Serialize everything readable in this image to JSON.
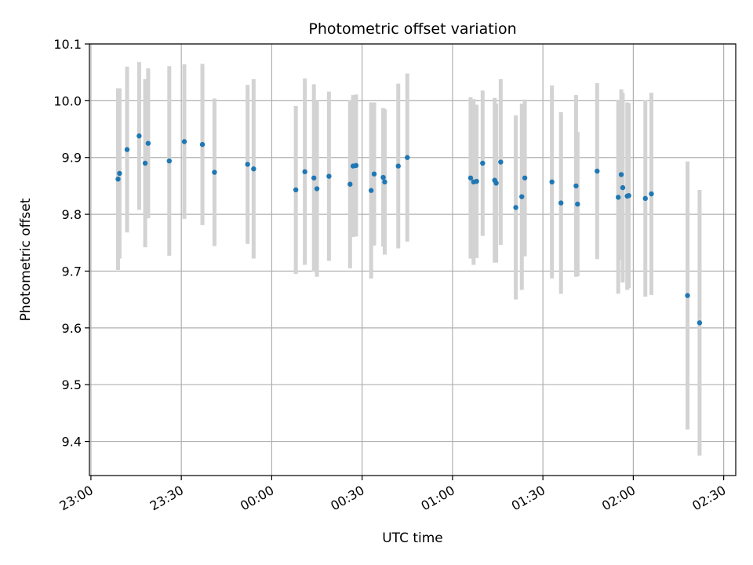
{
  "chart_data": {
    "type": "scatter",
    "title": "Photometric offset variation",
    "xlabel": "UTC time",
    "ylabel": "Photometric offset",
    "xlim": [
      "2000-01-01T22:59:30",
      "2000-01-02T02:34:00"
    ],
    "ylim": [
      9.34,
      10.1
    ],
    "x_ticks": [
      {
        "value": "2000-01-01T23:00",
        "label": "23:00"
      },
      {
        "value": "2000-01-01T23:30",
        "label": "23:30"
      },
      {
        "value": "2000-01-02T00:00",
        "label": "00:00"
      },
      {
        "value": "2000-01-02T00:30",
        "label": "00:30"
      },
      {
        "value": "2000-01-02T01:00",
        "label": "01:00"
      },
      {
        "value": "2000-01-02T01:30",
        "label": "01:30"
      },
      {
        "value": "2000-01-02T02:00",
        "label": "02:00"
      },
      {
        "value": "2000-01-02T02:30",
        "label": "02:30"
      }
    ],
    "y_ticks": [
      {
        "value": 9.4,
        "label": "9.4"
      },
      {
        "value": 9.5,
        "label": "9.5"
      },
      {
        "value": 9.6,
        "label": "9.6"
      },
      {
        "value": 9.7,
        "label": "9.7"
      },
      {
        "value": 9.8,
        "label": "9.8"
      },
      {
        "value": 9.9,
        "label": "9.9"
      },
      {
        "value": 10.0,
        "label": "10.0"
      },
      {
        "value": 10.1,
        "label": "10.1"
      }
    ],
    "grid": true,
    "colors": {
      "points": "#1f77b4",
      "errorbars": "#d3d3d3",
      "grid": "#b0b0b0"
    },
    "points": [
      {
        "t": "2000-01-01T23:09",
        "y": 9.862,
        "err": 0.16
      },
      {
        "t": "2000-01-01T23:09:30",
        "y": 9.872,
        "err": 0.15
      },
      {
        "t": "2000-01-01T23:12",
        "y": 9.914,
        "err": 0.146
      },
      {
        "t": "2000-01-01T23:16",
        "y": 9.938,
        "err": 0.13
      },
      {
        "t": "2000-01-01T23:18",
        "y": 9.89,
        "err": 0.148
      },
      {
        "t": "2000-01-01T23:19",
        "y": 9.925,
        "err": 0.132
      },
      {
        "t": "2000-01-01T23:26",
        "y": 9.894,
        "err": 0.167
      },
      {
        "t": "2000-01-01T23:31",
        "y": 9.928,
        "err": 0.136
      },
      {
        "t": "2000-01-01T23:37",
        "y": 9.923,
        "err": 0.142
      },
      {
        "t": "2000-01-01T23:41",
        "y": 9.874,
        "err": 0.13
      },
      {
        "t": "2000-01-01T23:52",
        "y": 9.888,
        "err": 0.14
      },
      {
        "t": "2000-01-01T23:54",
        "y": 9.88,
        "err": 0.158
      },
      {
        "t": "2000-01-02T00:08",
        "y": 9.843,
        "err": 0.148
      },
      {
        "t": "2000-01-02T00:11",
        "y": 9.875,
        "err": 0.164
      },
      {
        "t": "2000-01-02T00:14",
        "y": 9.864,
        "err": 0.165
      },
      {
        "t": "2000-01-02T00:15",
        "y": 9.845,
        "err": 0.155
      },
      {
        "t": "2000-01-02T00:19",
        "y": 9.867,
        "err": 0.149
      },
      {
        "t": "2000-01-02T00:26",
        "y": 9.853,
        "err": 0.148
      },
      {
        "t": "2000-01-02T00:27",
        "y": 9.885,
        "err": 0.125
      },
      {
        "t": "2000-01-02T00:28",
        "y": 9.886,
        "err": 0.125
      },
      {
        "t": "2000-01-02T00:33",
        "y": 9.842,
        "err": 0.155
      },
      {
        "t": "2000-01-02T00:34",
        "y": 9.871,
        "err": 0.126
      },
      {
        "t": "2000-01-02T00:37",
        "y": 9.865,
        "err": 0.122
      },
      {
        "t": "2000-01-02T00:37:30",
        "y": 9.857,
        "err": 0.128
      },
      {
        "t": "2000-01-02T00:42",
        "y": 9.885,
        "err": 0.145
      },
      {
        "t": "2000-01-02T00:45",
        "y": 9.9,
        "err": 0.148
      },
      {
        "t": "2000-01-02T01:06",
        "y": 9.864,
        "err": 0.142
      },
      {
        "t": "2000-01-02T01:07",
        "y": 9.857,
        "err": 0.146
      },
      {
        "t": "2000-01-02T01:08",
        "y": 9.858,
        "err": 0.135
      },
      {
        "t": "2000-01-02T01:10",
        "y": 9.89,
        "err": 0.128
      },
      {
        "t": "2000-01-02T01:14",
        "y": 9.86,
        "err": 0.145
      },
      {
        "t": "2000-01-02T01:14:30",
        "y": 9.855,
        "err": 0.14
      },
      {
        "t": "2000-01-02T01:16",
        "y": 9.892,
        "err": 0.146
      },
      {
        "t": "2000-01-02T01:21",
        "y": 9.812,
        "err": 0.162
      },
      {
        "t": "2000-01-02T01:23",
        "y": 9.831,
        "err": 0.164
      },
      {
        "t": "2000-01-02T01:24",
        "y": 9.864,
        "err": 0.138
      },
      {
        "t": "2000-01-02T01:33",
        "y": 9.857,
        "err": 0.17
      },
      {
        "t": "2000-01-02T01:36",
        "y": 9.82,
        "err": 0.16
      },
      {
        "t": "2000-01-02T01:41",
        "y": 9.85,
        "err": 0.16
      },
      {
        "t": "2000-01-02T01:41:30",
        "y": 9.818,
        "err": 0.127
      },
      {
        "t": "2000-01-02T01:48",
        "y": 9.876,
        "err": 0.155
      },
      {
        "t": "2000-01-02T01:55",
        "y": 9.83,
        "err": 0.17
      },
      {
        "t": "2000-01-02T01:56",
        "y": 9.87,
        "err": 0.15
      },
      {
        "t": "2000-01-02T01:56:30",
        "y": 9.847,
        "err": 0.167
      },
      {
        "t": "2000-01-02T01:58",
        "y": 9.832,
        "err": 0.165
      },
      {
        "t": "2000-01-02T01:58:30",
        "y": 9.833,
        "err": 0.163
      },
      {
        "t": "2000-01-02T02:04",
        "y": 9.828,
        "err": 0.173
      },
      {
        "t": "2000-01-02T02:06",
        "y": 9.836,
        "err": 0.178
      },
      {
        "t": "2000-01-02T02:18",
        "y": 9.657,
        "err": 0.236
      },
      {
        "t": "2000-01-02T02:22",
        "y": 9.609,
        "err": 0.234
      }
    ]
  }
}
